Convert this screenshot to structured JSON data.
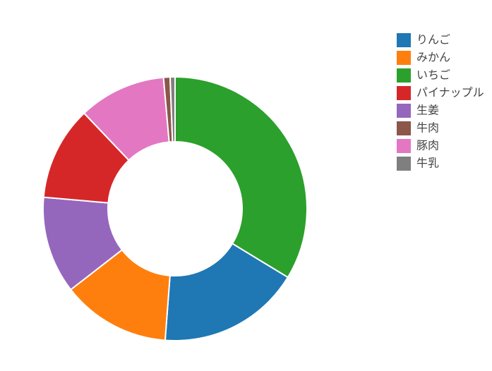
{
  "chart_data": {
    "type": "pie",
    "hole": true,
    "categories": [
      "りんご",
      "みかん",
      "いちご",
      "パイナップル",
      "生姜",
      "牛肉",
      "豚肉",
      "牛乳"
    ],
    "values": [
      17.5,
      13.3,
      33.7,
      11.5,
      11.9,
      0.8,
      10.7,
      0.6
    ],
    "colors": [
      "#1f77b4",
      "#ff7f0e",
      "#2ca02c",
      "#d62728",
      "#9467bd",
      "#8c564b",
      "#e377c2",
      "#7f7f7f"
    ]
  }
}
